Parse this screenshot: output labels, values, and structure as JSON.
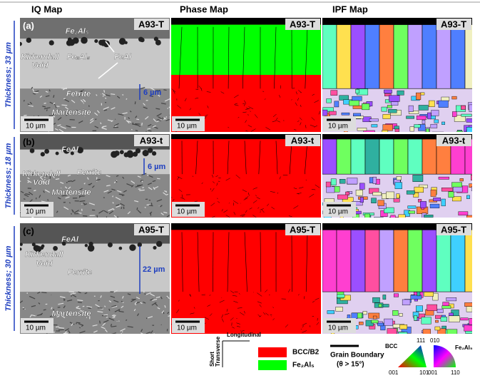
{
  "columns": [
    "IQ Map",
    "Phase Map",
    "IPF Map"
  ],
  "rows": [
    {
      "label": "(a)",
      "sample": "A93-T",
      "thickness": "Thickness; 33 µm",
      "annotations": {
        "fe2al5_top": "Fe₂Al₅",
        "fe2al5": "Fe₂Al₅",
        "feal": "FeAl",
        "void": [
          "Kirkendall",
          "Void"
        ],
        "ferrite": "Ferrite",
        "martensite": "Martensite",
        "layer": "6 µm"
      }
    },
    {
      "label": "(b)",
      "sample": "A93-t",
      "thickness": "Thickness; 18 µm",
      "annotations": {
        "feal": "FeAl",
        "void": [
          "Kirkendall",
          "Void"
        ],
        "ferrite": "Ferrite",
        "martensite": "Martensite",
        "layer": "6 µm"
      }
    },
    {
      "label": "(c)",
      "sample": "A95-T",
      "thickness": "Thickness; 30 µm",
      "annotations": {
        "feal": "FeAl",
        "void": [
          "Kirkendall",
          "Void"
        ],
        "ferrite": "Ferrite",
        "martensite": "Martensite",
        "layer": "22 µm"
      }
    }
  ],
  "scale_bar": "10 µm",
  "legend": {
    "axis_x": "Longitudinal",
    "axis_y": [
      "Short",
      "Transverse"
    ],
    "phase_1": "BCC/B2",
    "phase_2": "Fe₂Al₅",
    "boundary": [
      "Grain Boundary",
      "(θ > 15°)"
    ],
    "ipf_bcc": {
      "name": "BCC",
      "top": "111",
      "left": "001",
      "right": "101"
    },
    "ipf_fe2al5": {
      "name": "Fe₂Al₅",
      "top": "010",
      "left": "001",
      "right": "110"
    }
  }
}
